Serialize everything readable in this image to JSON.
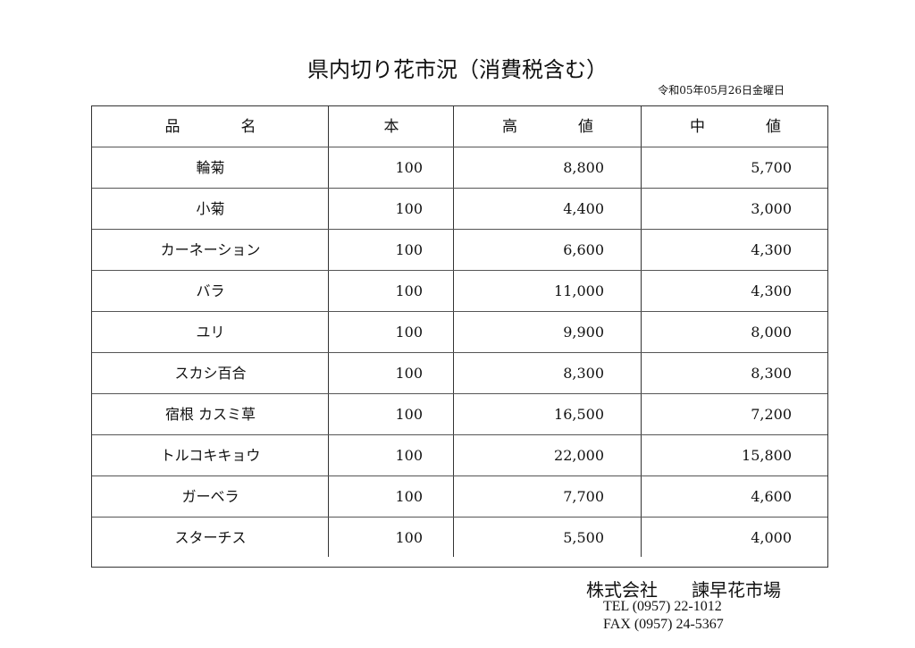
{
  "title": "県内切り花市況（消費税含む）",
  "date": "令和05年05月26日金曜日",
  "table": {
    "headers": {
      "name": "品　　　　名",
      "count": "本",
      "high": "高　　　　値",
      "mid": "中　　　　値"
    },
    "rows": [
      {
        "name": "輪菊",
        "count": "100",
        "high": "8,800",
        "mid": "5,700"
      },
      {
        "name": "小菊",
        "count": "100",
        "high": "4,400",
        "mid": "3,000"
      },
      {
        "name": "カーネーション",
        "count": "100",
        "high": "6,600",
        "mid": "4,300"
      },
      {
        "name": "バラ",
        "count": "100",
        "high": "11,000",
        "mid": "4,300"
      },
      {
        "name": "ユリ",
        "count": "100",
        "high": "9,900",
        "mid": "8,000"
      },
      {
        "name": "スカシ百合",
        "count": "100",
        "high": "8,300",
        "mid": "8,300"
      },
      {
        "name": "宿根 カスミ草",
        "count": "100",
        "high": "16,500",
        "mid": "7,200"
      },
      {
        "name": "トルコキキョウ",
        "count": "100",
        "high": "22,000",
        "mid": "15,800"
      },
      {
        "name": "ガーベラ",
        "count": "100",
        "high": "7,700",
        "mid": "4,600"
      },
      {
        "name": "スターチス",
        "count": "100",
        "high": "5,500",
        "mid": "4,000"
      }
    ]
  },
  "footer": {
    "company_type": "株式会社",
    "company_name": "諫早花市場",
    "tel": "TEL (0957) 22-1012",
    "fax": "FAX (0957) 24-5367"
  }
}
